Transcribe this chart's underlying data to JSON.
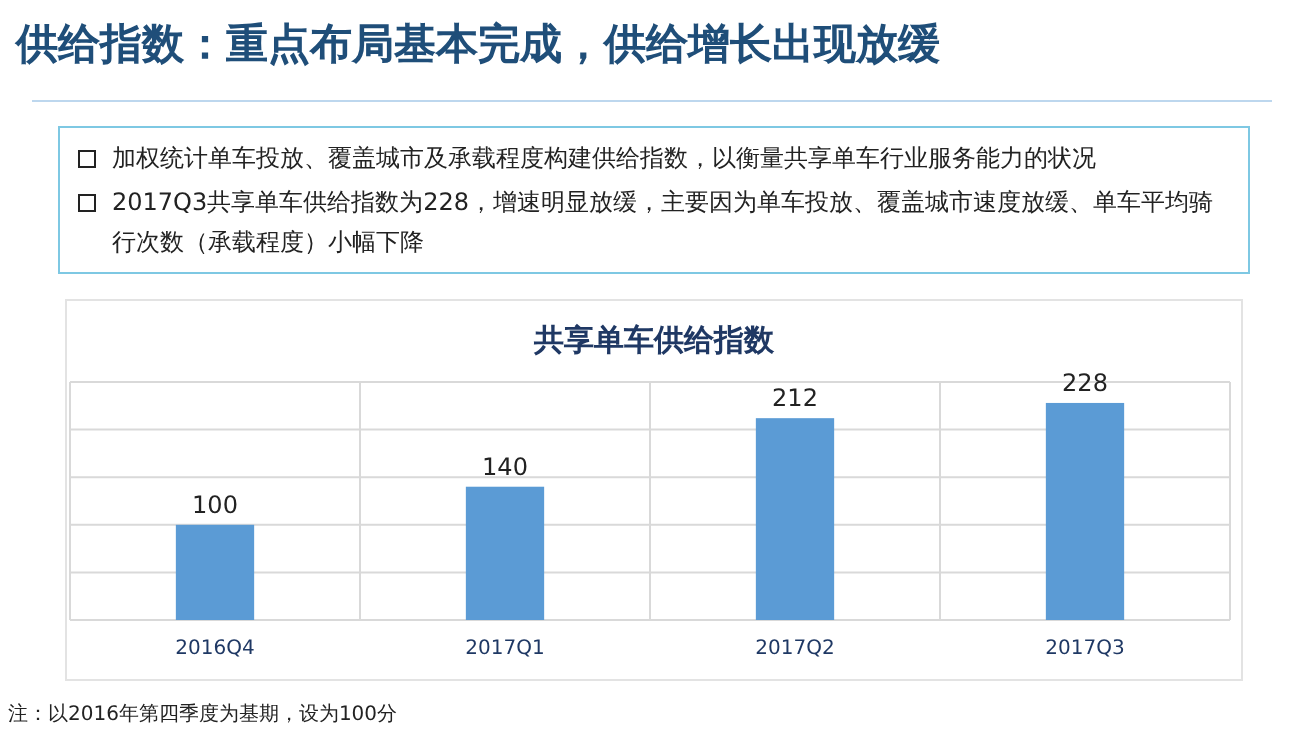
{
  "chart_data": {
    "type": "bar",
    "title": "供给指数：重点布局基本完成，供给增长出现放缓",
    "subtitle": "共享单车供给指数",
    "annotations": [
      "加权统计单车投放、覆盖城市及承载程度构建供给指数，以衡量共享单车行业服务能力的状况",
      "2017Q3共享单车供给指数为228，增速明显放缓，主要因为单车投放、覆盖城市速度放缓、单车平均骑行次数（承载程度）小幅下降",
      "注：以2016年第四季度为基期，设为100分"
    ],
    "categories": [
      "2016Q4",
      "2017Q1",
      "2017Q2",
      "2017Q3"
    ],
    "values": [
      100,
      140,
      212,
      228
    ],
    "color": "#5b9bd5",
    "data_labels": true,
    "ylim": [
      0,
      250
    ],
    "yticks": [
      {
        "value": 0,
        "label": null
      },
      {
        "value": 50,
        "label": null
      },
      {
        "value": 100,
        "label": null
      },
      {
        "value": 150,
        "label": null
      },
      {
        "value": 200,
        "label": null
      },
      {
        "value": 250,
        "label": null
      }
    ],
    "tick_labels": "x",
    "grid": true
  }
}
